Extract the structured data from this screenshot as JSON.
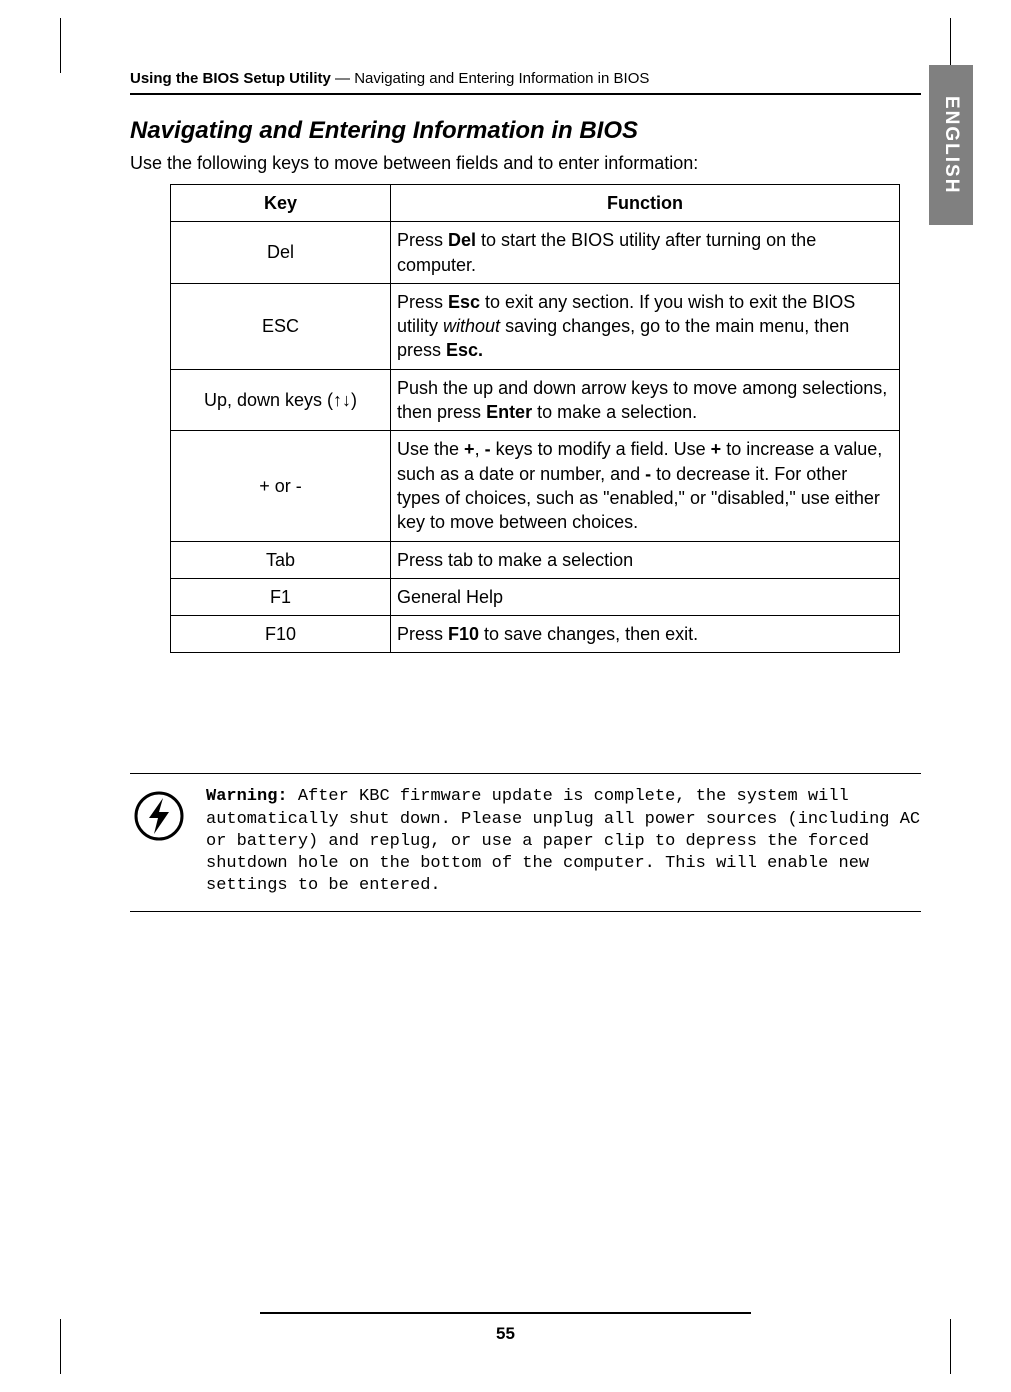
{
  "runningHead": {
    "bold": "Using the BIOS Setup Utility",
    "rest": " — Navigating and Entering Information in BIOS"
  },
  "sideTab": "ENGLISH",
  "section": {
    "title": "Navigating and Entering Information in BIOS",
    "intro": "Use the following keys to move between fields and to enter information:"
  },
  "table": {
    "headers": {
      "key": "Key",
      "func": "Function"
    },
    "rows": [
      {
        "key": "Del",
        "funcParts": [
          "Press ",
          "Del",
          " to start the BIOS utility after turning on the computer."
        ],
        "boldIdx": [
          1
        ]
      },
      {
        "key": "ESC",
        "funcParts": [
          "Press ",
          "Esc",
          " to exit any section. If you wish to exit the BIOS utility ",
          "without",
          " saving changes, go to the main menu, then press ",
          "Esc."
        ],
        "boldIdx": [
          1,
          5
        ],
        "italicIdx": [
          3
        ]
      },
      {
        "keyParts": [
          "Up, down keys (",
          "↑↓",
          ")"
        ],
        "funcParts": [
          "Push the up and down arrow keys to move among selections, then press ",
          "Enter",
          " to make a selection."
        ],
        "boldIdx": [
          1
        ]
      },
      {
        "key": "+ or -",
        "funcParts": [
          "Use the ",
          "+",
          ", ",
          "-",
          " keys to modify a field. Use ",
          "+",
          " to increase a value, such as a date or number, and ",
          "-",
          " to decrease it. For other types of choices, such as \"enabled,\" or \"disabled,\" use either key to move between choices."
        ],
        "boldIdx": [
          1,
          3,
          5,
          7
        ]
      },
      {
        "key": "Tab",
        "funcParts": [
          "Press tab to make a selection"
        ]
      },
      {
        "key": "F1",
        "funcParts": [
          "General Help"
        ]
      },
      {
        "key": "F10",
        "funcParts": [
          "Press ",
          "F10",
          " to save changes, then exit."
        ],
        "boldIdx": [
          1
        ]
      }
    ]
  },
  "warning": {
    "label": "Warning:",
    "text": " After KBC firmware update is complete, the system will automatically shut down. Please unplug all power sources (including AC or battery) and replug, or use a paper clip to depress the forced shutdown hole on the bottom of the computer. This will enable new settings to be entered."
  },
  "pageNumber": "55",
  "colors": {
    "tabBg": "#808080",
    "tabFg": "#ffffff",
    "text": "#000000"
  }
}
